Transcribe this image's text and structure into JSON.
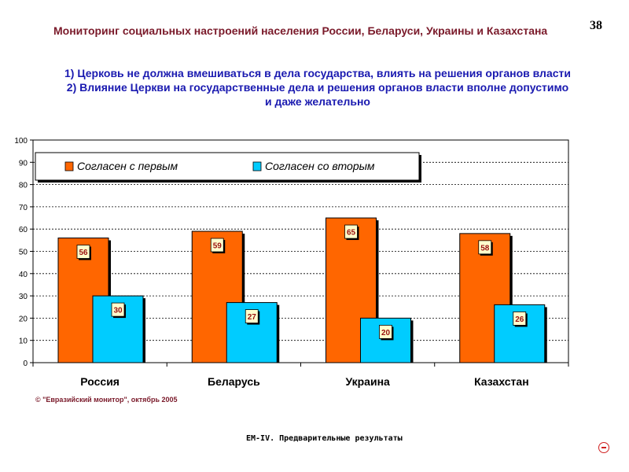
{
  "header": {
    "title": "Мониторинг социальных настроений населения России, Беларуси, Украины и Казахстана",
    "page_number": "38"
  },
  "question": {
    "line1": "1) Церковь не должна вмешиваться в дела государства, влиять на решения органов власти",
    "line2": "2) Влияние Церкви на государственные дела и решения органов власти вполне допустимо и даже желательно"
  },
  "chart_data": {
    "type": "bar",
    "categories": [
      "Россия",
      "Беларусь",
      "Украина",
      "Казахстан"
    ],
    "series": [
      {
        "name": "Согласен с первым",
        "values": [
          56,
          59,
          65,
          58
        ],
        "color": "#ff6600"
      },
      {
        "name": "Согласен со вторым",
        "values": [
          30,
          27,
          20,
          26
        ],
        "color": "#00ccff"
      }
    ],
    "ylim": [
      0,
      100
    ],
    "yticks": [
      0,
      10,
      20,
      30,
      40,
      50,
      60,
      70,
      80,
      90,
      100
    ],
    "grid": true,
    "legend": "top-left",
    "title": "",
    "xlabel": "",
    "ylabel": ""
  },
  "footer": {
    "copyright": "© \"Евразийский монитор\", октябрь 2005",
    "note": "ЕМ-IV. Предварительные результаты"
  },
  "colors": {
    "label_text": "#9a1010",
    "header_text": "#7a1a2a",
    "question_text": "#1a1ab0"
  },
  "icons": {
    "nav": "minus-circle-icon"
  }
}
